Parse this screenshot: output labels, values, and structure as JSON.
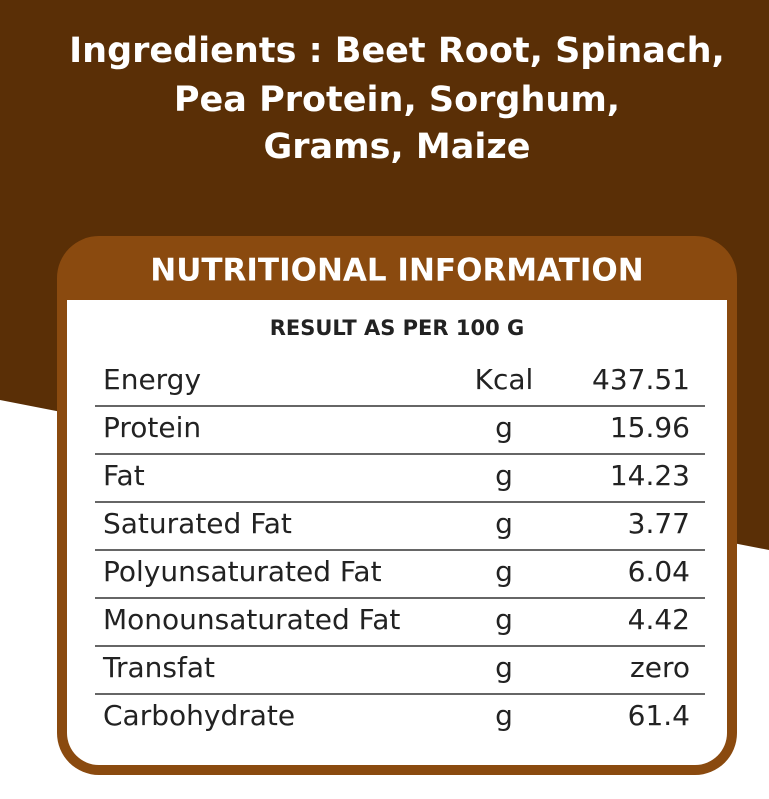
{
  "ingredients": {
    "lines": [
      "Ingredients : Beet Root, Spinach,",
      "Pea Protein, Sorghum,",
      "Grams, Maize"
    ]
  },
  "panel": {
    "title": "NUTRITIONAL INFORMATION",
    "subtitle": "RESULT AS PER 100 G"
  },
  "table": {
    "rows": [
      [
        "Energy",
        "Kcal",
        "437.51"
      ],
      [
        "Protein",
        "g",
        "15.96"
      ],
      [
        "Fat",
        "g",
        "14.23"
      ],
      [
        "Saturated Fat",
        "g",
        "3.77"
      ],
      [
        "Polyunsaturated Fat",
        "g",
        "6.04"
      ],
      [
        "Monounsaturated Fat",
        "g",
        "4.42"
      ],
      [
        "Transfat",
        "g",
        "zero"
      ],
      [
        "Carbohydrate",
        "g",
        "61.4"
      ]
    ]
  }
}
